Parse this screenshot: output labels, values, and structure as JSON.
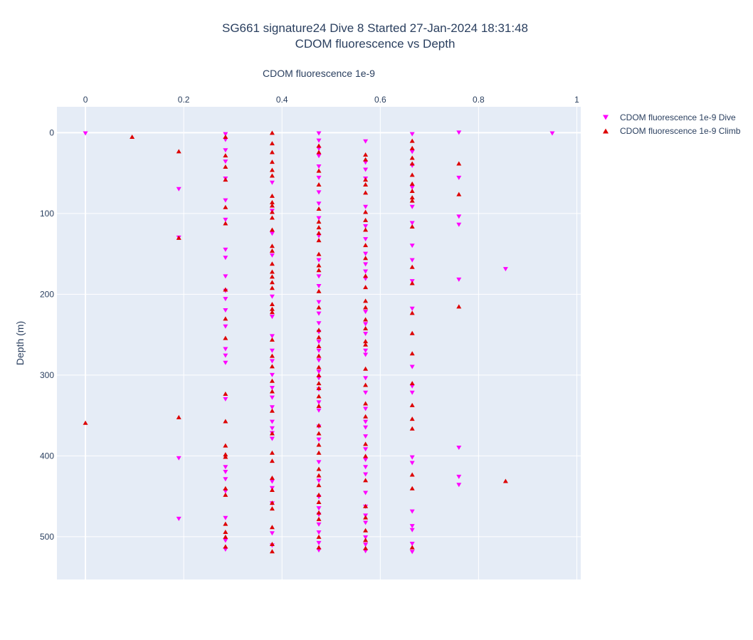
{
  "chart_data": {
    "type": "scatter",
    "title_line1": "SG661 signature24 Dive 8 Started 27-Jan-2024 18:31:48",
    "title_line2": "CDOM fluorescence vs Depth",
    "xlabel": "CDOM fluorescence 1e-9",
    "ylabel": "Depth (m)",
    "xlim": [
      -0.058,
      1.008
    ],
    "ylim": [
      553,
      -32
    ],
    "x_axis_side": "top",
    "y_reversed": true,
    "grid": true,
    "legend_position": "top-right",
    "x_ticks": [
      {
        "value": 0,
        "label": "0"
      },
      {
        "value": 0.2,
        "label": "0.2"
      },
      {
        "value": 0.4,
        "label": "0.4"
      },
      {
        "value": 0.6,
        "label": "0.6"
      },
      {
        "value": 0.8,
        "label": "0.8"
      },
      {
        "value": 1,
        "label": "1"
      }
    ],
    "y_ticks": [
      {
        "value": 0,
        "label": "0"
      },
      {
        "value": 100,
        "label": "100"
      },
      {
        "value": 200,
        "label": "200"
      },
      {
        "value": 300,
        "label": "300"
      },
      {
        "value": 400,
        "label": "400"
      },
      {
        "value": 500,
        "label": "500"
      }
    ],
    "series": [
      {
        "name": "CDOM fluorescence 1e-9 Dive",
        "marker": "triangle-down",
        "color": "#ff00ff",
        "points": [
          [
            0,
            1
          ],
          [
            0.19,
            70
          ],
          [
            0.19,
            130
          ],
          [
            0.19,
            403
          ],
          [
            0.19,
            478
          ],
          [
            0.285,
            2
          ],
          [
            0.285,
            9
          ],
          [
            0.285,
            22
          ],
          [
            0.285,
            36
          ],
          [
            0.285,
            57
          ],
          [
            0.285,
            84
          ],
          [
            0.285,
            108
          ],
          [
            0.285,
            145
          ],
          [
            0.285,
            155
          ],
          [
            0.285,
            178
          ],
          [
            0.285,
            196
          ],
          [
            0.285,
            206
          ],
          [
            0.285,
            220
          ],
          [
            0.285,
            240
          ],
          [
            0.285,
            268
          ],
          [
            0.285,
            276
          ],
          [
            0.285,
            285
          ],
          [
            0.285,
            330
          ],
          [
            0.285,
            414
          ],
          [
            0.285,
            420
          ],
          [
            0.285,
            429
          ],
          [
            0.285,
            444
          ],
          [
            0.285,
            477
          ],
          [
            0.285,
            505
          ],
          [
            0.285,
            516
          ],
          [
            0.38,
            62
          ],
          [
            0.38,
            97
          ],
          [
            0.38,
            125
          ],
          [
            0.38,
            152
          ],
          [
            0.38,
            203
          ],
          [
            0.38,
            228
          ],
          [
            0.38,
            252
          ],
          [
            0.38,
            270
          ],
          [
            0.38,
            283
          ],
          [
            0.38,
            300
          ],
          [
            0.38,
            316
          ],
          [
            0.38,
            328
          ],
          [
            0.38,
            340
          ],
          [
            0.38,
            358
          ],
          [
            0.38,
            366
          ],
          [
            0.38,
            372
          ],
          [
            0.38,
            379
          ],
          [
            0.38,
            432
          ],
          [
            0.38,
            440
          ],
          [
            0.38,
            459
          ],
          [
            0.38,
            496
          ],
          [
            0.38,
            511
          ],
          [
            0.475,
            1
          ],
          [
            0.475,
            10
          ],
          [
            0.475,
            20
          ],
          [
            0.475,
            29
          ],
          [
            0.475,
            42
          ],
          [
            0.475,
            56
          ],
          [
            0.475,
            74
          ],
          [
            0.475,
            88
          ],
          [
            0.475,
            106
          ],
          [
            0.475,
            128
          ],
          [
            0.475,
            158
          ],
          [
            0.475,
            178
          ],
          [
            0.475,
            190
          ],
          [
            0.475,
            210
          ],
          [
            0.475,
            224
          ],
          [
            0.475,
            236
          ],
          [
            0.475,
            247
          ],
          [
            0.475,
            259
          ],
          [
            0.475,
            270
          ],
          [
            0.475,
            282
          ],
          [
            0.475,
            296
          ],
          [
            0.475,
            304
          ],
          [
            0.475,
            318
          ],
          [
            0.475,
            334
          ],
          [
            0.475,
            344
          ],
          [
            0.475,
            364
          ],
          [
            0.475,
            380
          ],
          [
            0.475,
            408
          ],
          [
            0.475,
            431
          ],
          [
            0.475,
            451
          ],
          [
            0.475,
            465
          ],
          [
            0.475,
            473
          ],
          [
            0.475,
            485
          ],
          [
            0.475,
            495
          ],
          [
            0.475,
            508
          ],
          [
            0.475,
            517
          ],
          [
            0.57,
            11
          ],
          [
            0.57,
            37
          ],
          [
            0.57,
            46
          ],
          [
            0.57,
            57
          ],
          [
            0.57,
            92
          ],
          [
            0.57,
            116
          ],
          [
            0.57,
            132
          ],
          [
            0.57,
            150
          ],
          [
            0.57,
            163
          ],
          [
            0.57,
            172
          ],
          [
            0.57,
            181
          ],
          [
            0.57,
            222
          ],
          [
            0.57,
            237
          ],
          [
            0.57,
            249
          ],
          [
            0.57,
            270
          ],
          [
            0.57,
            275
          ],
          [
            0.57,
            304
          ],
          [
            0.57,
            322
          ],
          [
            0.57,
            342
          ],
          [
            0.57,
            358
          ],
          [
            0.57,
            365
          ],
          [
            0.57,
            376
          ],
          [
            0.57,
            392
          ],
          [
            0.57,
            405
          ],
          [
            0.57,
            414
          ],
          [
            0.57,
            423
          ],
          [
            0.57,
            446
          ],
          [
            0.57,
            463
          ],
          [
            0.57,
            474
          ],
          [
            0.57,
            483
          ],
          [
            0.57,
            501
          ],
          [
            0.57,
            510
          ],
          [
            0.57,
            518
          ],
          [
            0.665,
            2
          ],
          [
            0.665,
            24
          ],
          [
            0.665,
            41
          ],
          [
            0.665,
            68
          ],
          [
            0.665,
            92
          ],
          [
            0.665,
            112
          ],
          [
            0.665,
            140
          ],
          [
            0.665,
            158
          ],
          [
            0.665,
            184
          ],
          [
            0.665,
            218
          ],
          [
            0.665,
            290
          ],
          [
            0.665,
            314
          ],
          [
            0.665,
            322
          ],
          [
            0.665,
            402
          ],
          [
            0.665,
            409
          ],
          [
            0.665,
            469
          ],
          [
            0.665,
            487
          ],
          [
            0.665,
            492
          ],
          [
            0.665,
            509
          ],
          [
            0.665,
            519
          ],
          [
            0.76,
            0
          ],
          [
            0.76,
            56
          ],
          [
            0.76,
            104
          ],
          [
            0.76,
            114
          ],
          [
            0.76,
            182
          ],
          [
            0.76,
            390
          ],
          [
            0.76,
            426
          ],
          [
            0.76,
            436
          ],
          [
            0.855,
            169
          ],
          [
            0.95,
            1
          ]
        ]
      },
      {
        "name": "CDOM fluorescence 1e-9 Climb",
        "marker": "triangle-up",
        "color": "#dd0000",
        "points": [
          [
            0,
            359
          ],
          [
            0.095,
            5
          ],
          [
            0.19,
            23
          ],
          [
            0.19,
            130
          ],
          [
            0.19,
            352
          ],
          [
            0.285,
            5
          ],
          [
            0.285,
            28
          ],
          [
            0.285,
            42
          ],
          [
            0.285,
            58
          ],
          [
            0.285,
            92
          ],
          [
            0.285,
            112
          ],
          [
            0.285,
            194
          ],
          [
            0.285,
            230
          ],
          [
            0.285,
            254
          ],
          [
            0.285,
            323
          ],
          [
            0.285,
            357
          ],
          [
            0.285,
            387
          ],
          [
            0.285,
            398
          ],
          [
            0.285,
            401
          ],
          [
            0.285,
            440
          ],
          [
            0.285,
            448
          ],
          [
            0.285,
            484
          ],
          [
            0.285,
            494
          ],
          [
            0.285,
            500
          ],
          [
            0.285,
            512
          ],
          [
            0.38,
            0
          ],
          [
            0.38,
            13
          ],
          [
            0.38,
            24
          ],
          [
            0.38,
            36
          ],
          [
            0.38,
            46
          ],
          [
            0.38,
            53
          ],
          [
            0.38,
            78
          ],
          [
            0.38,
            86
          ],
          [
            0.38,
            90
          ],
          [
            0.38,
            98
          ],
          [
            0.38,
            105
          ],
          [
            0.38,
            120
          ],
          [
            0.38,
            140
          ],
          [
            0.38,
            146
          ],
          [
            0.38,
            162
          ],
          [
            0.38,
            172
          ],
          [
            0.38,
            178
          ],
          [
            0.38,
            185
          ],
          [
            0.38,
            192
          ],
          [
            0.38,
            212
          ],
          [
            0.38,
            218
          ],
          [
            0.38,
            222
          ],
          [
            0.38,
            256
          ],
          [
            0.38,
            276
          ],
          [
            0.38,
            289
          ],
          [
            0.38,
            307
          ],
          [
            0.38,
            320
          ],
          [
            0.38,
            344
          ],
          [
            0.38,
            372
          ],
          [
            0.38,
            396
          ],
          [
            0.38,
            406
          ],
          [
            0.38,
            427
          ],
          [
            0.38,
            442
          ],
          [
            0.38,
            458
          ],
          [
            0.38,
            465
          ],
          [
            0.38,
            488
          ],
          [
            0.38,
            509
          ],
          [
            0.38,
            518
          ],
          [
            0.475,
            16
          ],
          [
            0.475,
            24
          ],
          [
            0.475,
            47
          ],
          [
            0.475,
            64
          ],
          [
            0.475,
            94
          ],
          [
            0.475,
            110
          ],
          [
            0.475,
            117
          ],
          [
            0.475,
            124
          ],
          [
            0.475,
            133
          ],
          [
            0.475,
            150
          ],
          [
            0.475,
            164
          ],
          [
            0.475,
            170
          ],
          [
            0.475,
            196
          ],
          [
            0.475,
            216
          ],
          [
            0.475,
            244
          ],
          [
            0.475,
            253
          ],
          [
            0.475,
            264
          ],
          [
            0.475,
            276
          ],
          [
            0.475,
            290
          ],
          [
            0.475,
            300
          ],
          [
            0.475,
            310
          ],
          [
            0.475,
            316
          ],
          [
            0.475,
            326
          ],
          [
            0.475,
            338
          ],
          [
            0.475,
            362
          ],
          [
            0.475,
            372
          ],
          [
            0.475,
            386
          ],
          [
            0.475,
            396
          ],
          [
            0.475,
            416
          ],
          [
            0.475,
            424
          ],
          [
            0.475,
            436
          ],
          [
            0.475,
            448
          ],
          [
            0.475,
            457
          ],
          [
            0.475,
            470
          ],
          [
            0.475,
            478
          ],
          [
            0.475,
            500
          ],
          [
            0.475,
            513
          ],
          [
            0.57,
            27
          ],
          [
            0.57,
            33
          ],
          [
            0.57,
            58
          ],
          [
            0.57,
            64
          ],
          [
            0.57,
            74
          ],
          [
            0.57,
            98
          ],
          [
            0.57,
            108
          ],
          [
            0.57,
            120
          ],
          [
            0.57,
            139
          ],
          [
            0.57,
            155
          ],
          [
            0.57,
            177
          ],
          [
            0.57,
            191
          ],
          [
            0.57,
            208
          ],
          [
            0.57,
            216
          ],
          [
            0.57,
            231
          ],
          [
            0.57,
            242
          ],
          [
            0.57,
            258
          ],
          [
            0.57,
            262
          ],
          [
            0.57,
            292
          ],
          [
            0.57,
            312
          ],
          [
            0.57,
            335
          ],
          [
            0.57,
            351
          ],
          [
            0.57,
            385
          ],
          [
            0.57,
            400
          ],
          [
            0.57,
            430
          ],
          [
            0.57,
            462
          ],
          [
            0.57,
            476
          ],
          [
            0.57,
            492
          ],
          [
            0.57,
            504
          ],
          [
            0.57,
            514
          ],
          [
            0.665,
            10
          ],
          [
            0.665,
            19
          ],
          [
            0.665,
            31
          ],
          [
            0.665,
            38
          ],
          [
            0.665,
            52
          ],
          [
            0.665,
            63
          ],
          [
            0.665,
            72
          ],
          [
            0.665,
            80
          ],
          [
            0.665,
            84
          ],
          [
            0.665,
            116
          ],
          [
            0.665,
            166
          ],
          [
            0.665,
            186
          ],
          [
            0.665,
            223
          ],
          [
            0.665,
            248
          ],
          [
            0.665,
            273
          ],
          [
            0.665,
            310
          ],
          [
            0.665,
            337
          ],
          [
            0.665,
            354
          ],
          [
            0.665,
            366
          ],
          [
            0.665,
            423
          ],
          [
            0.665,
            440
          ],
          [
            0.665,
            513
          ],
          [
            0.76,
            38
          ],
          [
            0.76,
            76
          ],
          [
            0.76,
            215
          ],
          [
            0.855,
            431
          ]
        ]
      }
    ]
  }
}
